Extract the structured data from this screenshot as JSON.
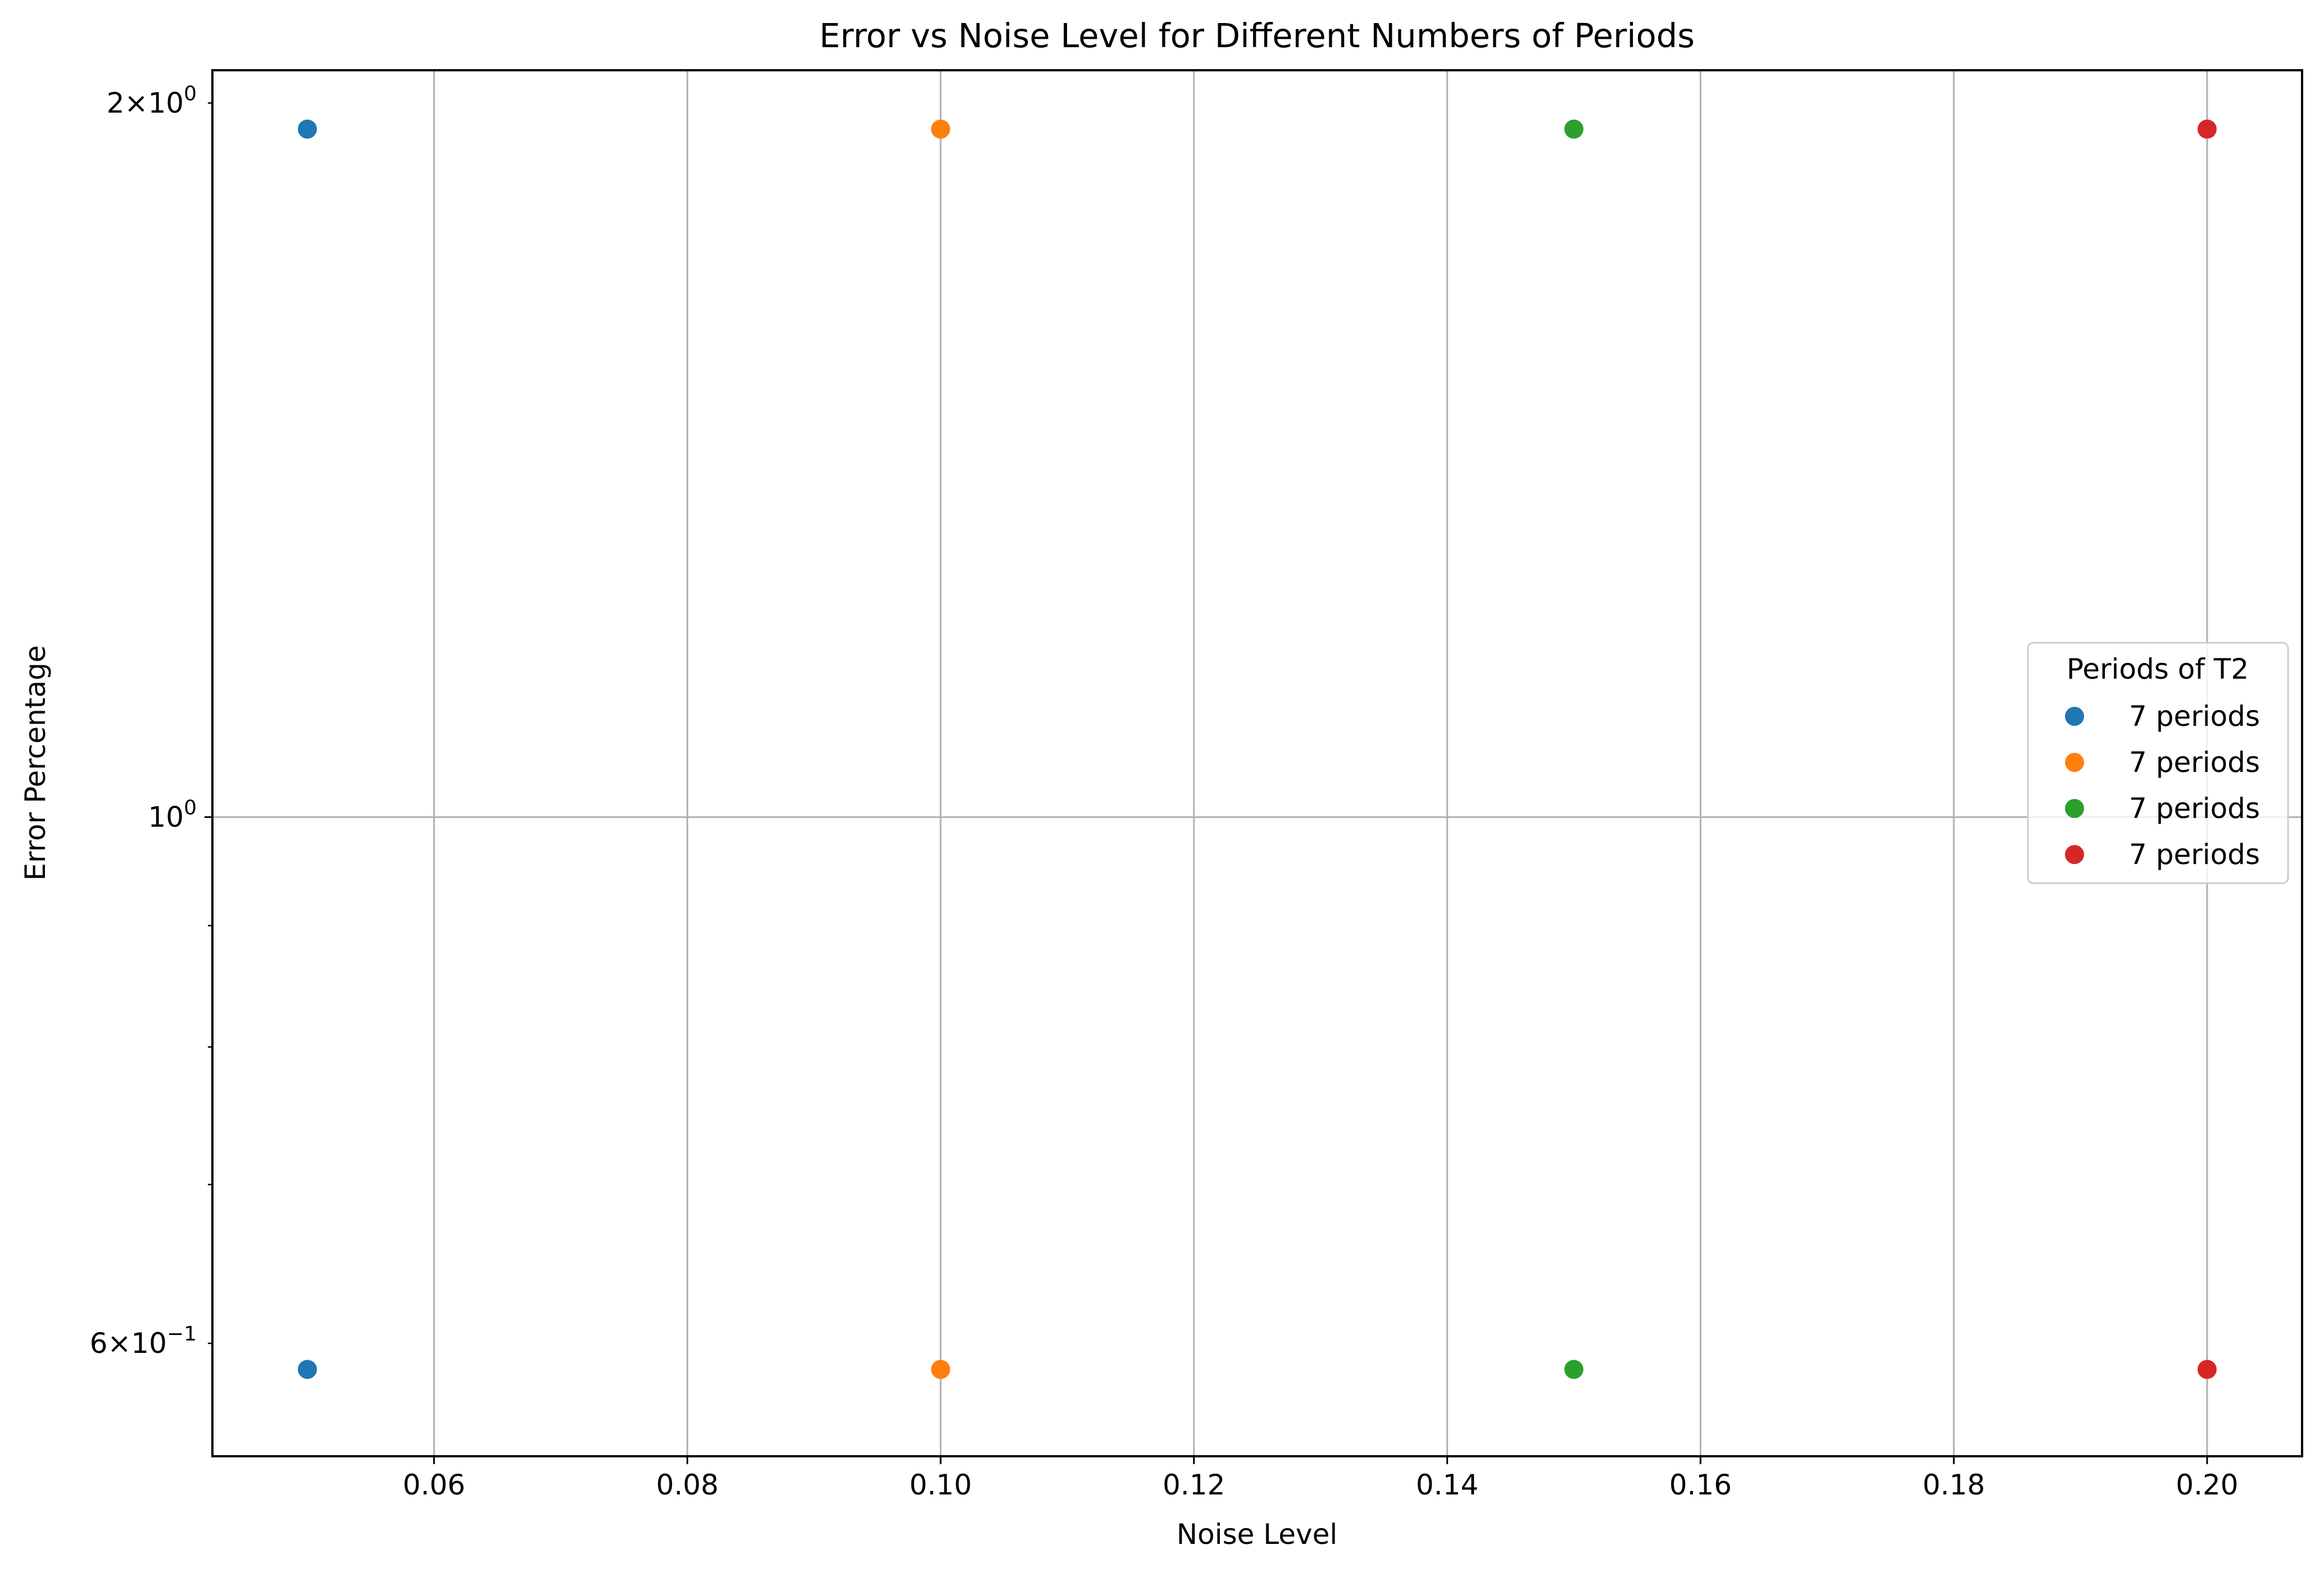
{
  "chart_data": {
    "type": "scatter",
    "title": "Error vs Noise Level for Different Numbers of Periods",
    "xlabel": "Noise Level",
    "ylabel": "Error Percentage",
    "xlim": [
      0.0425,
      0.2075
    ],
    "ylim": [
      0.5377,
      2.0647
    ],
    "yscale": "log",
    "grid": true,
    "x_ticks": [
      {
        "value": 0.06,
        "label": "0.06"
      },
      {
        "value": 0.08,
        "label": "0.08"
      },
      {
        "value": 0.1,
        "label": "0.10"
      },
      {
        "value": 0.12,
        "label": "0.12"
      },
      {
        "value": 0.14,
        "label": "0.14"
      },
      {
        "value": 0.16,
        "label": "0.16"
      },
      {
        "value": 0.18,
        "label": "0.18"
      },
      {
        "value": 0.2,
        "label": "0.20"
      }
    ],
    "y_major_ticks": [
      {
        "value": 1.0,
        "base": "10",
        "exp": "0",
        "mult": ""
      }
    ],
    "y_minor_ticks": [
      {
        "value": 0.6,
        "base": "10",
        "exp": "−1",
        "mult": "6×"
      },
      {
        "value": 0.7
      },
      {
        "value": 0.8
      },
      {
        "value": 0.9
      },
      {
        "value": 2.0,
        "base": "10",
        "exp": "0",
        "mult": "2×"
      }
    ],
    "legend": {
      "title": "Periods of T2",
      "position": "center-right"
    },
    "series": [
      {
        "name": "7 periods",
        "color": "#1f77b4",
        "points": [
          {
            "x": 0.05,
            "y": 1.95
          },
          {
            "x": 0.05,
            "y": 0.585
          }
        ]
      },
      {
        "name": "7 periods",
        "color": "#ff7f0e",
        "points": [
          {
            "x": 0.1,
            "y": 1.95
          },
          {
            "x": 0.1,
            "y": 0.585
          }
        ]
      },
      {
        "name": "7 periods",
        "color": "#2ca02c",
        "points": [
          {
            "x": 0.15,
            "y": 1.95
          },
          {
            "x": 0.15,
            "y": 0.585
          }
        ]
      },
      {
        "name": "7 periods",
        "color": "#d62728",
        "points": [
          {
            "x": 0.2,
            "y": 1.95
          },
          {
            "x": 0.2,
            "y": 0.585
          }
        ]
      }
    ]
  }
}
